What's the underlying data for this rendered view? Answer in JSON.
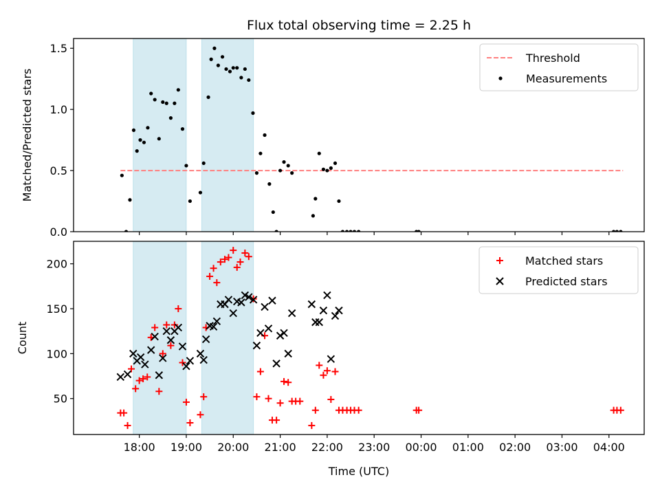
{
  "chart_data": [
    {
      "type": "scatter",
      "title": "Flux total observing time = 2.25 h",
      "xlabel": "",
      "ylabel": "Matched/Predicted stars",
      "xlim": [
        16.6,
        28.75
      ],
      "ylim": [
        0,
        1.58
      ],
      "yticks": [
        0.0,
        0.5,
        1.0,
        1.5
      ],
      "ytick_labels": [
        "0.0",
        "0.5",
        "1.0",
        "1.5"
      ],
      "grid": false,
      "legend": "top-right",
      "shaded_intervals": [
        [
          17.87,
          19.0
        ],
        [
          19.33,
          20.43
        ]
      ],
      "series": [
        {
          "name": "Threshold",
          "kind": "line",
          "style": "dashed",
          "color": "#ff7f7f",
          "x": [
            17.6,
            28.3
          ],
          "y": [
            0.5,
            0.5
          ]
        },
        {
          "name": "Measurements",
          "kind": "scatter",
          "color": "#000000",
          "x": [
            17.63,
            17.72,
            17.8,
            17.88,
            17.95,
            18.02,
            18.1,
            18.18,
            18.25,
            18.33,
            18.42,
            18.5,
            18.58,
            18.67,
            18.75,
            18.83,
            18.92,
            19.0,
            19.08,
            19.3,
            19.37,
            19.47,
            19.53,
            19.6,
            19.68,
            19.77,
            19.85,
            19.93,
            20.0,
            20.08,
            20.17,
            20.25,
            20.33,
            20.42,
            20.5,
            20.58,
            20.67,
            20.77,
            20.85,
            20.92,
            21.0,
            21.08,
            21.17,
            21.25,
            21.7,
            21.75,
            21.83,
            21.92,
            22.0,
            22.08,
            22.17,
            22.25,
            22.33,
            22.42,
            22.5,
            22.58,
            22.67,
            23.9,
            23.95,
            28.1,
            28.17,
            28.25
          ],
          "y": [
            0.46,
            0.0,
            0.26,
            0.83,
            0.66,
            0.75,
            0.73,
            0.85,
            1.13,
            1.08,
            0.76,
            1.06,
            1.05,
            0.93,
            1.05,
            1.16,
            0.84,
            0.54,
            0.25,
            0.32,
            0.56,
            1.1,
            1.41,
            1.5,
            1.36,
            1.43,
            1.33,
            1.31,
            1.34,
            1.34,
            1.26,
            1.33,
            1.24,
            0.97,
            0.48,
            0.64,
            0.79,
            0.39,
            0.16,
            0.0,
            0.5,
            0.57,
            0.54,
            0.48,
            0.13,
            0.27,
            0.64,
            0.51,
            0.5,
            0.52,
            0.56,
            0.25,
            0.0,
            0.0,
            0.0,
            0.0,
            0.0,
            0.0,
            0.0,
            0.0,
            0.0,
            0.0
          ]
        }
      ]
    },
    {
      "type": "scatter",
      "title": "",
      "xlabel": "Time (UTC)",
      "ylabel": "Count",
      "xlim": [
        16.6,
        28.75
      ],
      "ylim": [
        10,
        225
      ],
      "yticks": [
        50,
        100,
        150,
        200
      ],
      "ytick_labels": [
        "50",
        "100",
        "150",
        "200"
      ],
      "xticks": [
        18,
        19,
        20,
        21,
        22,
        23,
        24,
        25,
        26,
        27,
        28
      ],
      "xtick_labels": [
        "18:00",
        "19:00",
        "20:00",
        "21:00",
        "22:00",
        "23:00",
        "00:00",
        "01:00",
        "02:00",
        "03:00",
        "04:00"
      ],
      "grid": false,
      "legend": "top-right",
      "shaded_intervals": [
        [
          17.87,
          19.0
        ],
        [
          19.33,
          20.43
        ]
      ],
      "series": [
        {
          "name": "Matched stars",
          "kind": "scatter",
          "marker": "plus",
          "color": "#ff0000",
          "x": [
            17.6,
            17.67,
            17.75,
            17.83,
            17.92,
            18.0,
            18.08,
            18.17,
            18.25,
            18.33,
            18.42,
            18.5,
            18.58,
            18.67,
            18.75,
            18.83,
            18.92,
            19.0,
            19.08,
            19.3,
            19.37,
            19.42,
            19.5,
            19.58,
            19.65,
            19.73,
            19.82,
            19.9,
            20.0,
            20.08,
            20.15,
            20.25,
            20.33,
            20.43,
            20.5,
            20.58,
            20.67,
            20.75,
            20.83,
            20.92,
            21.0,
            21.08,
            21.17,
            21.25,
            21.33,
            21.42,
            21.67,
            21.75,
            21.83,
            21.92,
            22.0,
            22.08,
            22.17,
            22.25,
            22.33,
            22.42,
            22.5,
            22.58,
            22.67,
            23.9,
            23.95,
            28.1,
            28.17,
            28.25
          ],
          "y": [
            34,
            34,
            20,
            83,
            61,
            70,
            72,
            74,
            118,
            129,
            58,
            100,
            132,
            109,
            132,
            150,
            90,
            46,
            23,
            32,
            52,
            129,
            186,
            195,
            179,
            202,
            205,
            207,
            215,
            196,
            202,
            212,
            208,
            161,
            52,
            80,
            120,
            50,
            26,
            26,
            45,
            69,
            68,
            47,
            47,
            47,
            20,
            37,
            87,
            76,
            81,
            49,
            80,
            37,
            37,
            37,
            37,
            37,
            37,
            37,
            37,
            37,
            37,
            37
          ]
        },
        {
          "name": "Predicted stars",
          "kind": "scatter",
          "marker": "x",
          "color": "#000000",
          "x": [
            17.6,
            17.75,
            17.87,
            17.95,
            18.03,
            18.12,
            18.25,
            18.33,
            18.42,
            18.5,
            18.58,
            18.67,
            18.75,
            18.83,
            18.92,
            19.0,
            19.08,
            19.3,
            19.37,
            19.42,
            19.5,
            19.58,
            19.65,
            19.73,
            19.82,
            19.9,
            20.0,
            20.08,
            20.17,
            20.25,
            20.33,
            20.43,
            20.5,
            20.58,
            20.67,
            20.75,
            20.83,
            20.92,
            21.0,
            21.08,
            21.17,
            21.25,
            21.67,
            21.75,
            21.83,
            21.92,
            22.0,
            22.08,
            22.17,
            22.25
          ],
          "y": [
            74,
            77,
            100,
            92,
            96,
            88,
            104,
            119,
            76,
            95,
            125,
            115,
            125,
            129,
            108,
            86,
            92,
            100,
            93,
            116,
            131,
            130,
            136,
            155,
            155,
            160,
            145,
            158,
            157,
            165,
            163,
            160,
            109,
            123,
            152,
            128,
            159,
            89,
            120,
            123,
            100,
            145,
            155,
            135,
            135,
            148,
            165,
            94,
            142,
            148
          ]
        }
      ]
    }
  ]
}
